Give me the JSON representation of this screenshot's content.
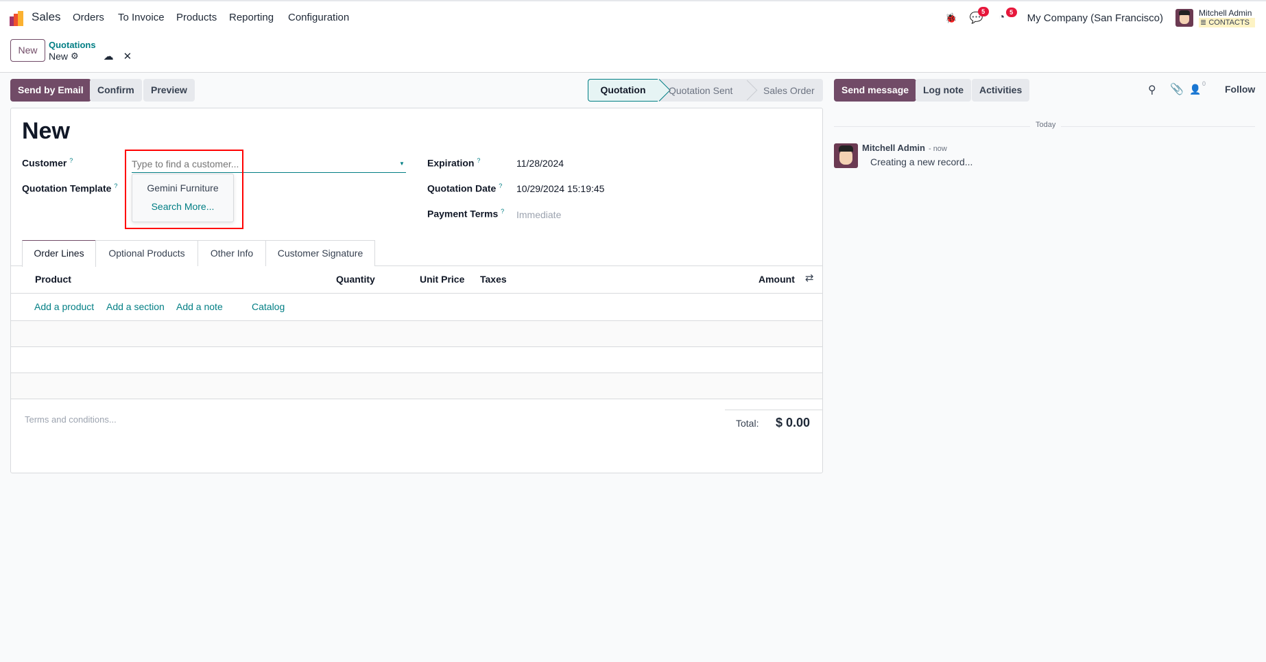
{
  "navbar": {
    "app": "Sales",
    "menu": [
      "Orders",
      "To Invoice",
      "Products",
      "Reporting",
      "Configuration"
    ],
    "messages_count": "5",
    "activities_count": "5",
    "company": "My Company (San Francisco)",
    "user": "Mitchell Admin",
    "database": "CONTACTS"
  },
  "breadcrumb": {
    "new_button": "New",
    "parent": "Quotations",
    "current": "New"
  },
  "actions": {
    "send_email": "Send by Email",
    "confirm": "Confirm",
    "preview": "Preview"
  },
  "statusbar": [
    "Quotation",
    "Quotation Sent",
    "Sales Order"
  ],
  "form": {
    "title": "New",
    "customer_label": "Customer",
    "customer_placeholder": "Type to find a customer...",
    "help": "?",
    "template_label": "Quotation Template",
    "dropdown": [
      "Gemini Furniture",
      "Search More..."
    ],
    "expiration_label": "Expiration",
    "expiration": "11/28/2024",
    "date_label": "Quotation Date",
    "date": "10/29/2024 15:19:45",
    "terms_label": "Payment Terms",
    "terms_placeholder": "Immediate"
  },
  "tabs": [
    "Order Lines",
    "Optional Products",
    "Other Info",
    "Customer Signature"
  ],
  "table": {
    "columns": [
      "Product",
      "Quantity",
      "Unit Price",
      "Taxes",
      "Amount"
    ],
    "add_links": [
      "Add a product",
      "Add a section",
      "Add a note",
      "Catalog"
    ]
  },
  "footer": {
    "terms_placeholder": "Terms and conditions...",
    "total_label": "Total:",
    "total": "$ 0.00"
  },
  "chatter": {
    "send_message": "Send message",
    "log_note": "Log note",
    "activities": "Activities",
    "followers": "0",
    "follow": "Follow",
    "today": "Today",
    "author": "Mitchell Admin",
    "time": "- now",
    "message": "Creating a new record..."
  }
}
